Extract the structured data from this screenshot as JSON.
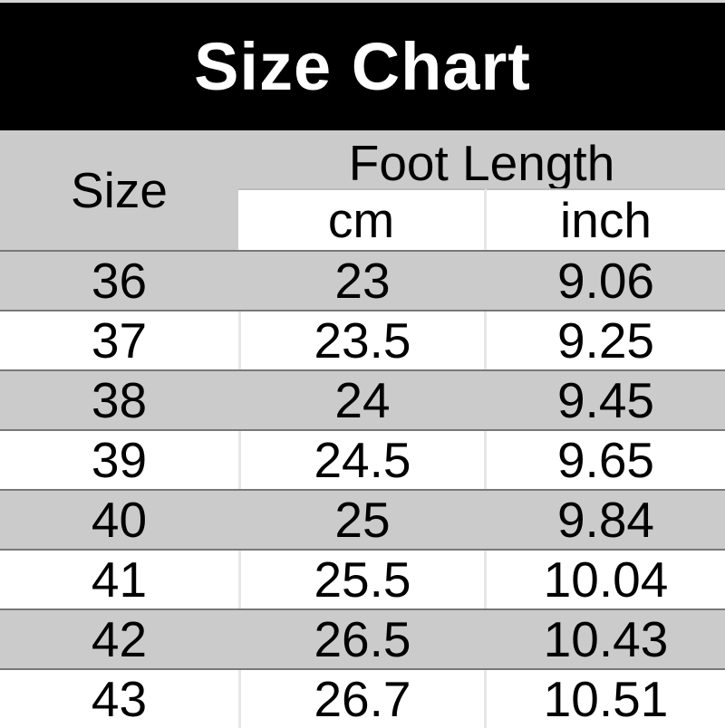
{
  "banner": {
    "title": "Size Chart"
  },
  "chart_data": {
    "type": "table",
    "title": "Size Chart",
    "column_groups": [
      {
        "label": "Size",
        "span": 1
      },
      {
        "label": "Foot Length",
        "span": 2
      }
    ],
    "columns": [
      "Size",
      "cm",
      "inch"
    ],
    "rows": [
      [
        "36",
        "23",
        "9.06"
      ],
      [
        "37",
        "23.5",
        "9.25"
      ],
      [
        "38",
        "24",
        "9.45"
      ],
      [
        "39",
        "24.5",
        "9.65"
      ],
      [
        "40",
        "25",
        "9.84"
      ],
      [
        "41",
        "25.5",
        "10.04"
      ],
      [
        "42",
        "26.5",
        "10.43"
      ],
      [
        "43",
        "26.7",
        "10.51"
      ]
    ],
    "layout_hints": {
      "alternating_rows": true,
      "gray_row_indices": [
        0,
        2,
        4,
        6
      ]
    }
  },
  "colors": {
    "banner_bg": "#000000",
    "banner_text": "#ffffff",
    "row_alt_bg": "#cbcbcb",
    "row_rule": "#787878",
    "cell_divider": "#e7e7e7",
    "text": "#000000"
  }
}
